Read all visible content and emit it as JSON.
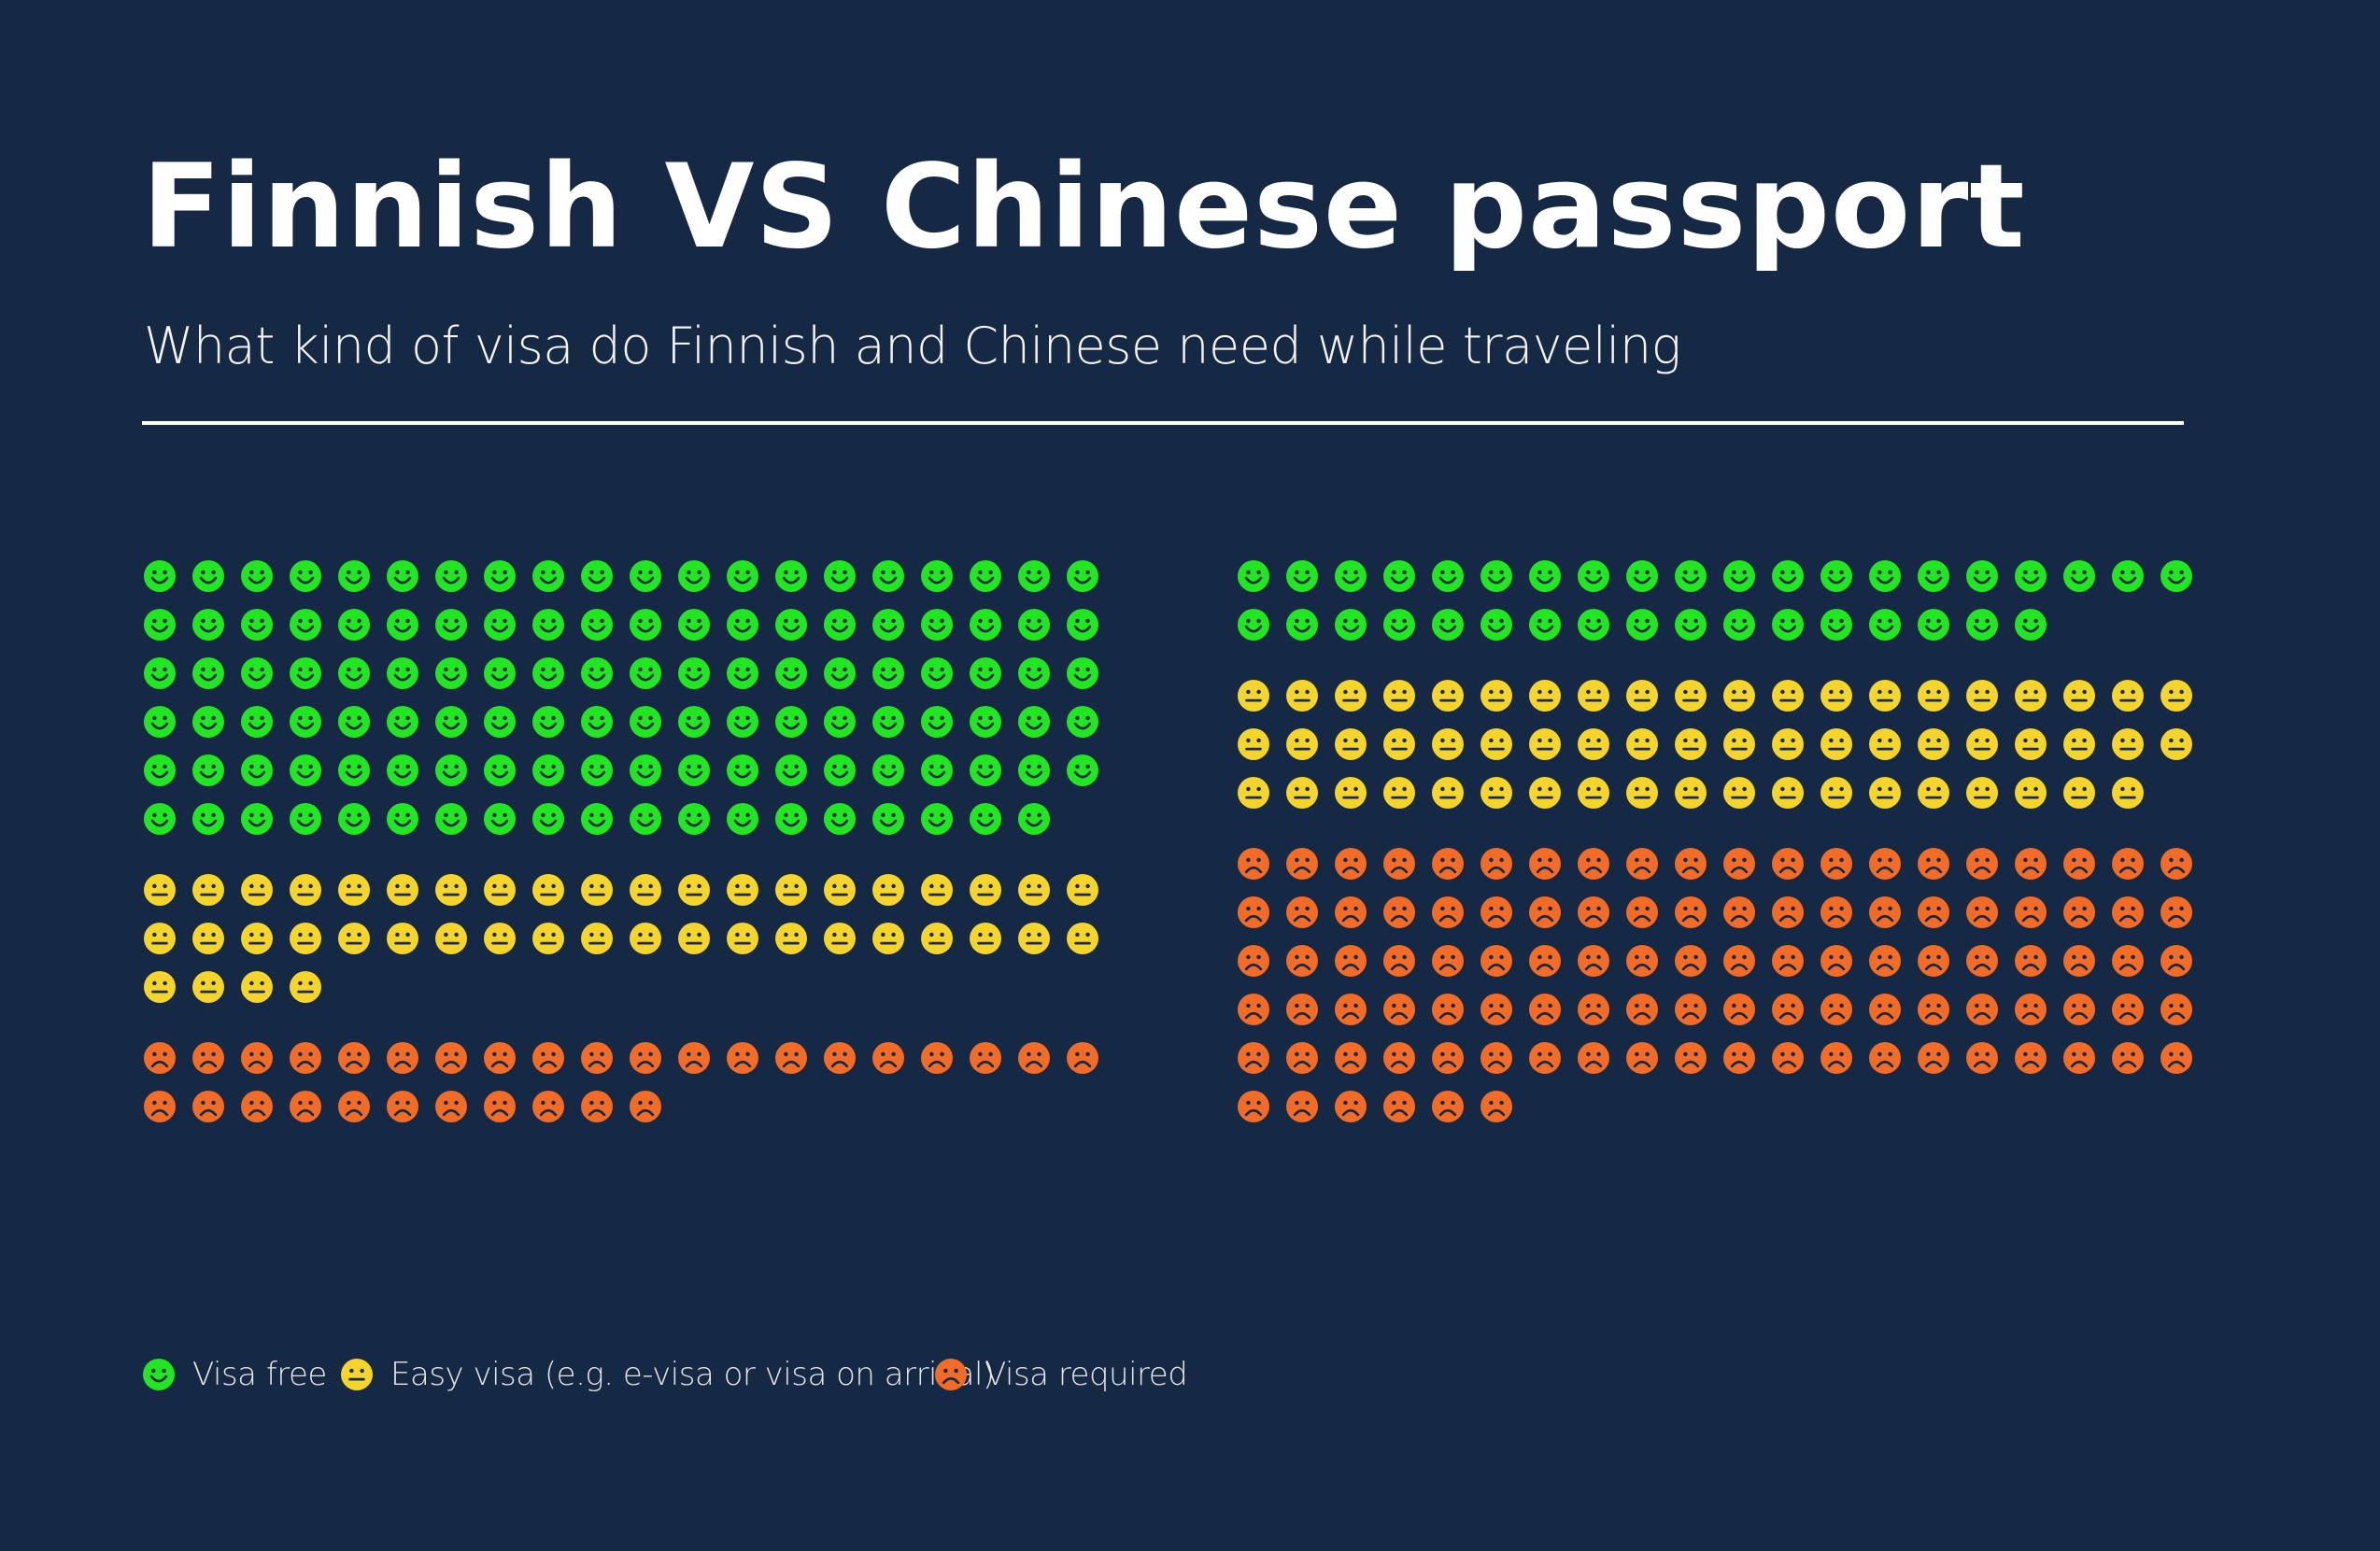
{
  "header": {
    "title": "Finnish VS Chinese passport",
    "subtitle": "What kind of visa do Finnish and Chinese need while traveling"
  },
  "colors": {
    "background": "#152944",
    "visa_free": "#22E622",
    "easy_visa": "#F5D52C",
    "visa_required": "#F26B27",
    "face_features": "#152944"
  },
  "legend": [
    {
      "key": "visa_free",
      "label": "Visa free",
      "icon": "smile-face-icon"
    },
    {
      "key": "easy_visa",
      "label": "Easy visa (e.g. e-visa or visa on arrival)",
      "icon": "neutral-face-icon"
    },
    {
      "key": "visa_required",
      "label": "Visa required",
      "icon": "sad-face-icon"
    }
  ],
  "chart_data": {
    "type": "waffle",
    "title": "Finnish VS Chinese passport",
    "subtitle": "What kind of visa do Finnish and Chinese need while traveling",
    "icons_per_row": 20,
    "legend_position": "bottom-left",
    "categories": [
      "Visa free",
      "Easy visa (e.g. e-visa or visa on arrival)",
      "Visa required"
    ],
    "series": [
      {
        "values": [
          119,
          44,
          31
        ]
      },
      {
        "values": [
          37,
          59,
          106
        ]
      }
    ]
  }
}
